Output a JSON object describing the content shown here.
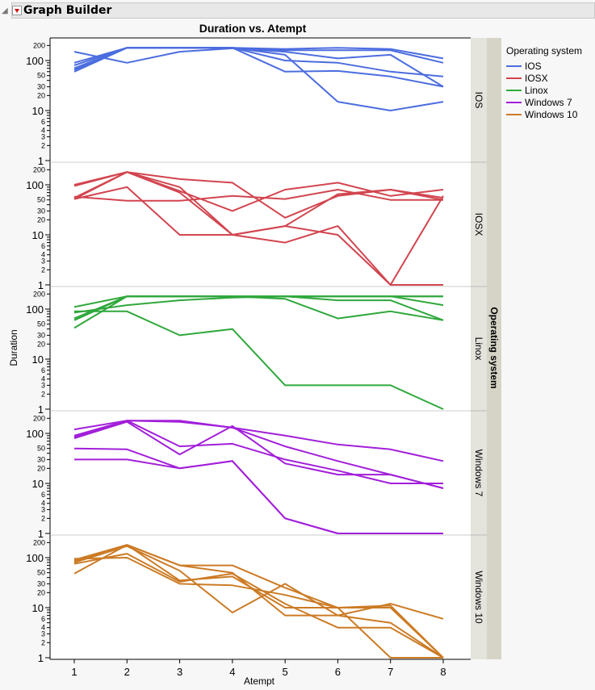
{
  "header": {
    "title": "Graph Builder"
  },
  "chart_data": {
    "type": "line",
    "title": "Duration vs. Atempt",
    "xlabel": "Atempt",
    "ylabel": "Duration",
    "y_scale": "log",
    "ylim": [
      1,
      300
    ],
    "x_ticks": [
      1,
      2,
      3,
      4,
      5,
      6,
      7,
      8
    ],
    "y_tick_labels": [
      "1",
      "2",
      "3",
      "4",
      "6",
      "10",
      "20",
      "30",
      "50",
      "100",
      "200"
    ],
    "grid": false,
    "facet_label": "Operating system",
    "legend": {
      "title": "Operating system",
      "placement": "right"
    },
    "x": [
      1,
      2,
      3,
      4,
      5,
      6,
      7,
      8
    ],
    "panels": [
      {
        "name": "IOS",
        "color": "#4c6ddf",
        "lines": [
          [
            150,
            90,
            150,
            175,
            150,
            110,
            130,
            30
          ],
          [
            90,
            180,
            180,
            180,
            160,
            160,
            160,
            90
          ],
          [
            80,
            180,
            180,
            180,
            170,
            180,
            170,
            110
          ],
          [
            70,
            180,
            180,
            180,
            100,
            90,
            60,
            48
          ],
          [
            65,
            180,
            180,
            180,
            60,
            62,
            48,
            30
          ],
          [
            60,
            180,
            180,
            180,
            130,
            15,
            10,
            15
          ]
        ]
      },
      {
        "name": "IOSX",
        "color": "#d2454f",
        "lines": [
          [
            100,
            180,
            130,
            110,
            22,
            60,
            80,
            50
          ],
          [
            95,
            180,
            90,
            10,
            15,
            10,
            1,
            1
          ],
          [
            55,
            180,
            75,
            30,
            80,
            110,
            60,
            80
          ],
          [
            52,
            180,
            70,
            10,
            7,
            15,
            1,
            60
          ],
          [
            52,
            90,
            10,
            10,
            15,
            65,
            80,
            55
          ],
          [
            58,
            48,
            48,
            60,
            52,
            80,
            50,
            50
          ]
        ]
      },
      {
        "name": "Linox",
        "color": "#2fa83b",
        "lines": [
          [
            110,
            180,
            180,
            180,
            180,
            180,
            180,
            180
          ],
          [
            90,
            90,
            30,
            40,
            3,
            3,
            3,
            1
          ],
          [
            85,
            120,
            150,
            170,
            180,
            150,
            150,
            60
          ],
          [
            65,
            180,
            180,
            180,
            160,
            65,
            90,
            60
          ],
          [
            60,
            180,
            180,
            180,
            180,
            180,
            180,
            120
          ],
          [
            42,
            180,
            180,
            180,
            180,
            180,
            180,
            180
          ]
        ]
      },
      {
        "name": "Windows 7",
        "color": "#a21fd9",
        "lines": [
          [
            120,
            180,
            180,
            130,
            90,
            60,
            48,
            28
          ],
          [
            90,
            180,
            170,
            130,
            55,
            28,
            15,
            8
          ],
          [
            80,
            170,
            38,
            140,
            25,
            15,
            15,
            8
          ],
          [
            85,
            180,
            55,
            62,
            30,
            18,
            10,
            10
          ],
          [
            50,
            48,
            20,
            28,
            2,
            1,
            1,
            1
          ],
          [
            30,
            30,
            20,
            28,
            2,
            1,
            1,
            1
          ]
        ]
      },
      {
        "name": "Windows 10",
        "color": "#cc7b25",
        "lines": [
          [
            90,
            180,
            70,
            70,
            25,
            10,
            10,
            1
          ],
          [
            80,
            170,
            55,
            8,
            30,
            7,
            12,
            6
          ],
          [
            75,
            120,
            33,
            48,
            12,
            4,
            4,
            1
          ],
          [
            95,
            100,
            30,
            28,
            18,
            10,
            1,
            1
          ],
          [
            48,
            180,
            35,
            42,
            10,
            10,
            11,
            1
          ],
          [
            85,
            180,
            70,
            50,
            7,
            7,
            5,
            1
          ]
        ]
      }
    ]
  }
}
